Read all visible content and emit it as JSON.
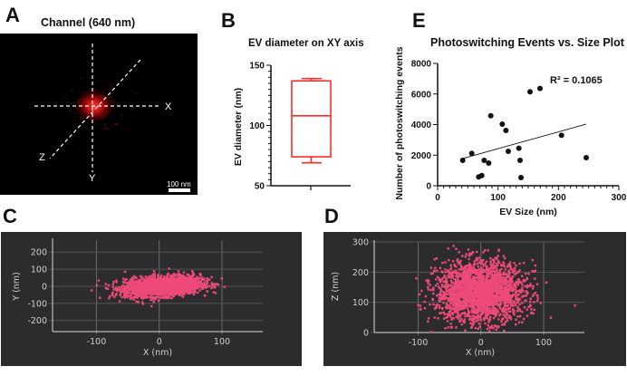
{
  "panels": {
    "a": {
      "letter": "A",
      "title": "Channel (640 nm)",
      "axes": [
        "X",
        "Y",
        "Z"
      ],
      "scale_bar": "100 nm",
      "spot_color": "#ff2020"
    },
    "b": {
      "letter": "B"
    },
    "c": {
      "letter": "C"
    },
    "d": {
      "letter": "D"
    },
    "e": {
      "letter": "E"
    }
  },
  "chart_data": [
    {
      "id": "B",
      "type": "box",
      "title": "EV diameter on XY axis",
      "xlabel": "",
      "ylabel": "EV diameter (nm)",
      "ylim": [
        50,
        150
      ],
      "yticks": [
        "50",
        "100",
        "150"
      ],
      "box": {
        "min": 69,
        "q1": 74,
        "median": 108,
        "q3": 137,
        "max": 139
      },
      "color": "#ff2a2a"
    },
    {
      "id": "C",
      "type": "scatter",
      "title": "",
      "xlabel": "X (nm)",
      "ylabel": "Y (nm)",
      "xlim": [
        -170,
        165
      ],
      "ylim": [
        -265,
        270
      ],
      "xticks": [
        "-100",
        "0",
        "100"
      ],
      "yticks": [
        "200",
        "100",
        "0",
        "-100",
        "-200"
      ],
      "xtick_values": [
        -100,
        0,
        100
      ],
      "ytick_values": [
        200,
        100,
        0,
        -100,
        -200
      ],
      "grid": true,
      "distribution": {
        "center": [
          5,
          0
        ],
        "sd": [
          30,
          28
        ],
        "tilt": 0.25,
        "count": 2200
      },
      "color": "#ee4a78",
      "background": "#2c2c2e"
    },
    {
      "id": "D",
      "type": "scatter",
      "title": "",
      "xlabel": "X (nm)",
      "ylabel": "Z (nm)",
      "xlim": [
        -170,
        165
      ],
      "ylim": [
        0,
        300
      ],
      "xticks": [
        "-100",
        "0",
        "100"
      ],
      "yticks": [
        "300",
        "200",
        "100",
        "0"
      ],
      "xtick_values": [
        -100,
        0,
        100
      ],
      "ytick_values": [
        300,
        200,
        100,
        0
      ],
      "grid": true,
      "distribution": {
        "center": [
          0,
          135
        ],
        "sd": [
          35,
          50
        ],
        "tilt": 0,
        "count": 2200
      },
      "color": "#ee4a78",
      "background": "#2c2c2e"
    },
    {
      "id": "E",
      "type": "scatter",
      "title": "Photoswitching Events vs. Size Plot",
      "xlabel": "EV Size (nm)",
      "ylabel": "Number of photoswitching events",
      "xlim": [
        0,
        300
      ],
      "ylim": [
        0,
        8000
      ],
      "xticks": [
        "0",
        "100",
        "200",
        "300"
      ],
      "yticks": [
        "0",
        "2000",
        "4000",
        "6000",
        "8000"
      ],
      "annotation": "R² = 0.1065",
      "r2": 0.1065,
      "x": [
        41.5,
        56.5,
        68,
        73,
        77,
        84.5,
        88,
        107,
        113,
        117,
        134.5,
        136.5,
        138,
        153,
        169.5,
        205,
        246
      ],
      "y": [
        1660,
        2115,
        575,
        670,
        1660,
        1480,
        4580,
        4030,
        3615,
        2250,
        2450,
        1660,
        535,
        6140,
        6360,
        3300,
        1840
      ],
      "fit_line": {
        "x": [
          41.5,
          246
        ],
        "y": [
          1780,
          4030
        ]
      }
    }
  ]
}
